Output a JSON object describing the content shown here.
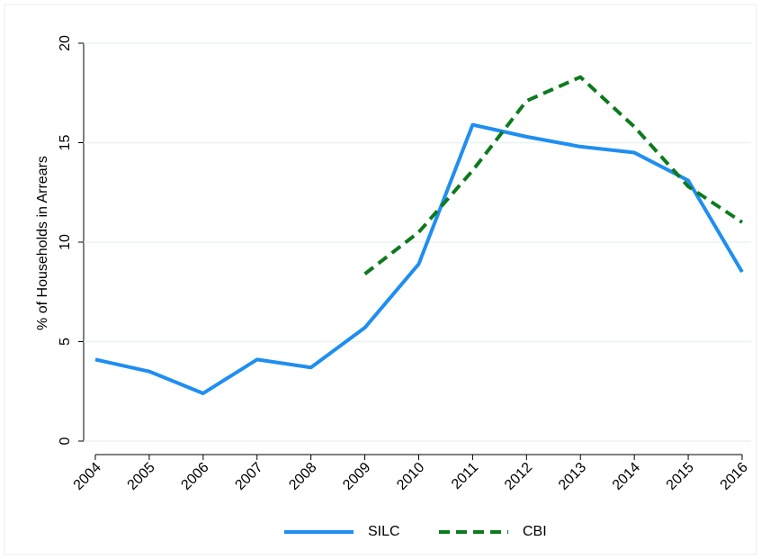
{
  "chart_data": {
    "type": "line",
    "y_label": "% of Households in Arrears",
    "categories": [
      "2004",
      "2005",
      "2006",
      "2007",
      "2008",
      "2009",
      "2010",
      "2011",
      "2012",
      "2013",
      "2014",
      "2015",
      "2016"
    ],
    "series": [
      {
        "name": "SILC",
        "color": "#1f8ef1",
        "dash": false,
        "values": [
          4.1,
          3.5,
          2.4,
          4.1,
          3.7,
          5.7,
          8.9,
          15.9,
          15.3,
          14.8,
          14.5,
          13.1,
          8.5
        ]
      },
      {
        "name": "CBI",
        "color": "#0c7a1d",
        "dash": true,
        "values": [
          null,
          null,
          null,
          null,
          null,
          8.4,
          10.5,
          13.6,
          17.1,
          18.3,
          15.8,
          12.8,
          11.0
        ]
      }
    ],
    "ylim": [
      0,
      20
    ],
    "yticks": [
      0,
      5,
      10,
      15,
      20
    ],
    "grid": true,
    "legend": "bottom"
  }
}
